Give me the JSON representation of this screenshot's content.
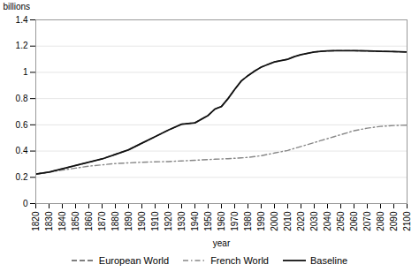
{
  "chart_data": {
    "type": "line",
    "title": "",
    "xlabel": "year",
    "ylabel": "billions",
    "x": [
      1820,
      1830,
      1840,
      1850,
      1860,
      1870,
      1880,
      1890,
      1900,
      1910,
      1920,
      1930,
      1940,
      1950,
      1955,
      1960,
      1965,
      1970,
      1975,
      1980,
      1985,
      1990,
      1995,
      2000,
      2005,
      2010,
      2015,
      2020,
      2025,
      2030,
      2035,
      2040,
      2045,
      2050,
      2060,
      2070,
      2080,
      2090,
      2100
    ],
    "series": [
      {
        "name": "European World",
        "color": "#555555",
        "line_style": "dashed",
        "values": [
          0.225,
          0.24,
          0.265,
          0.29,
          0.315,
          0.34,
          0.375,
          0.41,
          0.46,
          0.51,
          0.56,
          0.605,
          0.615,
          0.672,
          0.72,
          0.74,
          0.8,
          0.87,
          0.935,
          0.975,
          1.01,
          1.04,
          1.06,
          1.08,
          1.09,
          1.1,
          1.12,
          1.135,
          1.145,
          1.155,
          1.16,
          1.163,
          1.165,
          1.165,
          1.165,
          1.163,
          1.16,
          1.158,
          1.155
        ]
      },
      {
        "name": "French World",
        "color": "#888888",
        "line_style": "dashdot",
        "values": [
          0.225,
          0.238,
          0.255,
          0.27,
          0.285,
          0.295,
          0.305,
          0.31,
          0.315,
          0.318,
          0.32,
          0.325,
          0.33,
          0.335,
          0.338,
          0.34,
          0.342,
          0.345,
          0.348,
          0.352,
          0.358,
          0.365,
          0.375,
          0.385,
          0.395,
          0.405,
          0.42,
          0.435,
          0.45,
          0.465,
          0.48,
          0.495,
          0.51,
          0.525,
          0.555,
          0.575,
          0.588,
          0.595,
          0.598
        ]
      },
      {
        "name": "Baseline",
        "color": "#111111",
        "line_style": "solid",
        "values": [
          0.225,
          0.24,
          0.265,
          0.29,
          0.315,
          0.34,
          0.375,
          0.41,
          0.46,
          0.51,
          0.56,
          0.605,
          0.615,
          0.672,
          0.72,
          0.74,
          0.8,
          0.87,
          0.935,
          0.975,
          1.01,
          1.04,
          1.06,
          1.08,
          1.09,
          1.1,
          1.12,
          1.135,
          1.145,
          1.155,
          1.16,
          1.163,
          1.165,
          1.165,
          1.165,
          1.163,
          1.16,
          1.158,
          1.155
        ]
      }
    ],
    "xlim": [
      1820,
      2100
    ],
    "ylim": [
      0,
      1.4
    ],
    "xticks": [
      1820,
      1830,
      1840,
      1850,
      1860,
      1870,
      1880,
      1890,
      1900,
      1910,
      1920,
      1930,
      1940,
      1950,
      1960,
      1970,
      1980,
      1990,
      2000,
      2010,
      2020,
      2030,
      2040,
      2050,
      2060,
      2070,
      2080,
      2090,
      2100
    ],
    "yticks": [
      0,
      0.2,
      0.4,
      0.6,
      0.8,
      1,
      1.2,
      1.4
    ],
    "grid": true,
    "legend": "bottom"
  }
}
